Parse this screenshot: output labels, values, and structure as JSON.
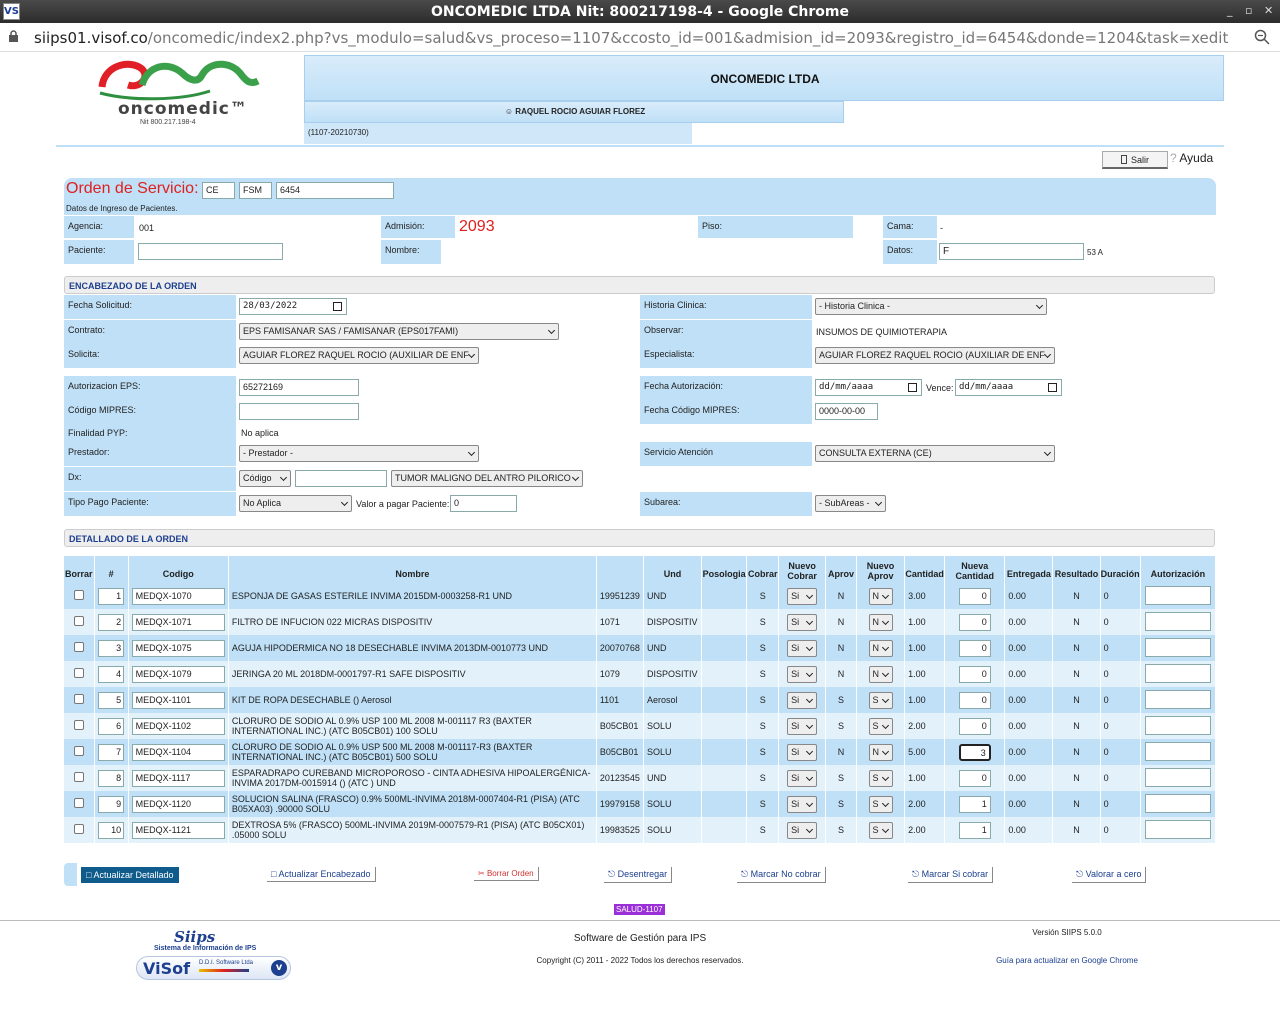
{
  "window": {
    "title": "ONCOMEDIC LTDA Nit: 800217198-4 - Google Chrome",
    "app_icon": "VS",
    "controls": [
      "_",
      "▫",
      "✕"
    ]
  },
  "browser": {
    "url_host": "siips01.visof.co",
    "url_path": "/oncomedic/index2.php?vs_modulo=salud&vs_proceso=1107&ccosto_id=001&admision_id=2093&registro_id=6454&donde=1204&task=xedit"
  },
  "logo": {
    "name": "oncomedic™",
    "nit": "Nit 800.217.198-4"
  },
  "header": {
    "company": "ONCOMEDIC LTDA",
    "user": "☺ RAQUEL ROCIO AGUIAR FLOREZ",
    "process": "(1107-20210730)",
    "logout": "Salir",
    "help": "Ayuda"
  },
  "order": {
    "title": "Orden de Servicio:",
    "prefix1": "CE",
    "prefix2": "FSM",
    "number": "6454",
    "subtitle": "Datos de Ingreso de Pacientes.",
    "agencia_label": "Agencia:",
    "agencia": "001",
    "admision_label": "Admisión:",
    "admision": "2093",
    "piso_label": "Piso:",
    "cama_label": "Cama:",
    "cama": "-",
    "paciente_label": "Paciente:",
    "paciente": "",
    "nombre_label": "Nombre:",
    "datos_label": "Datos:",
    "datos": "F",
    "edad": "53 A"
  },
  "encabezado": {
    "section": "ENCABEZADO DE LA ORDEN",
    "fecha_solicitud_label": "Fecha Solicitud:",
    "fecha_solicitud": "28/03/2022",
    "historia_label": "Historia Clinica:",
    "historia": "- Historia Clinica -",
    "contrato_label": "Contrato:",
    "contrato": "EPS FAMISANAR SAS / FAMISANAR (EPS017FAMI)",
    "observar_label": "Observar:",
    "observar": "INSUMOS DE QUIMIOTERAPIA",
    "solicita_label": "Solicita:",
    "solicita": "AGUIAR FLOREZ RAQUEL ROCIO (AUXILIAR DE ENF",
    "especialista_label": "Especialista:",
    "especialista": "AGUIAR FLOREZ RAQUEL ROCIO (AUXILIAR DE ENF",
    "autorizacion_label": "Autorizacion EPS:",
    "autorizacion": "65272169",
    "fecha_aut_label": "Fecha Autorización:",
    "fecha_aut": "dd/mm/aaaa",
    "vence_label": "Vence:",
    "vence": "dd/mm/aaaa",
    "mipres_label": "Código MIPRES:",
    "mipres": "",
    "fecha_mipres_label": "Fecha Código MIPRES:",
    "fecha_mipres": "0000-00-00",
    "finalidad_label": "Finalidad PYP:",
    "finalidad": "No aplica",
    "prestador_label": "Prestador:",
    "prestador": "- Prestador -",
    "servicio_label": "Servicio Atención",
    "servicio": "CONSULTA EXTERNA (CE)",
    "dx_label": "Dx:",
    "dx_code": "Código",
    "dx_text": "",
    "dx_desc": "TUMOR MALIGNO DEL ANTRO PILORICO",
    "tipo_pago_label": "Tipo Pago Paciente:",
    "tipo_pago": "No Aplica",
    "valor_label": "Valor a pagar Paciente:",
    "valor": "0",
    "subarea_label": "Subarea:",
    "subarea": "- SubAreas -"
  },
  "detalle": {
    "section": "DETALLADO DE LA ORDEN",
    "columns": [
      "Borrar",
      "#",
      "Codigo",
      "Nombre",
      "",
      "Und",
      "Posologia",
      "Cobrar",
      "Nuevo Cobrar",
      "Aprov",
      "Nuevo Aprov",
      "Cantidad",
      "Nueva Cantidad",
      "Entregada",
      "Resultado",
      "Duración",
      "Autorización"
    ],
    "rows": [
      {
        "n": "1",
        "code": "MEDQX-1070",
        "name": "ESPONJA DE GASAS ESTERILE INVIMA 2015DM-0003258-R1 UND",
        "ref": "19951239",
        "und": "UND",
        "pos": "",
        "cobrar": "S",
        "nc": "Si",
        "aprov": "N",
        "na": "N",
        "cant": "3.00",
        "ncant": "0",
        "ent": "0.00",
        "res": "N",
        "dur": "0"
      },
      {
        "n": "2",
        "code": "MEDQX-1071",
        "name": "FILTRO DE INFUCION 022 MICRAS DISPOSITIV",
        "ref": "1071",
        "und": "DISPOSITIV",
        "pos": "",
        "cobrar": "S",
        "nc": "Si",
        "aprov": "N",
        "na": "N",
        "cant": "1.00",
        "ncant": "0",
        "ent": "0.00",
        "res": "N",
        "dur": "0"
      },
      {
        "n": "3",
        "code": "MEDQX-1075",
        "name": "AGUJA HIPODERMICA NO 18 DESECHABLE INVIMA 2013DM-0010773 UND",
        "ref": "20070768",
        "und": "UND",
        "pos": "",
        "cobrar": "S",
        "nc": "Si",
        "aprov": "N",
        "na": "N",
        "cant": "1.00",
        "ncant": "0",
        "ent": "0.00",
        "res": "N",
        "dur": "0"
      },
      {
        "n": "4",
        "code": "MEDQX-1079",
        "name": "JERINGA 20 ML 2018DM-0001797-R1 SAFE DISPOSITIV",
        "ref": "1079",
        "und": "DISPOSITIV",
        "pos": "",
        "cobrar": "S",
        "nc": "Si",
        "aprov": "N",
        "na": "N",
        "cant": "1.00",
        "ncant": "0",
        "ent": "0.00",
        "res": "N",
        "dur": "0"
      },
      {
        "n": "5",
        "code": "MEDQX-1101",
        "name": "KIT DE ROPA DESECHABLE () Aerosol",
        "ref": "1101",
        "und": "Aerosol",
        "pos": "",
        "cobrar": "S",
        "nc": "Si",
        "aprov": "S",
        "na": "S",
        "cant": "1.00",
        "ncant": "0",
        "ent": "0.00",
        "res": "N",
        "dur": "0"
      },
      {
        "n": "6",
        "code": "MEDQX-1102",
        "name": "CLORURO DE SODIO AL 0.9% USP 100 ML 2008 M-001117 R3 (BAXTER INTERNATIONAL INC.) (ATC B05CB01) 100 SOLU",
        "ref": "B05CB01",
        "und": "SOLU",
        "pos": "",
        "cobrar": "S",
        "nc": "Si",
        "aprov": "S",
        "na": "S",
        "cant": "2.00",
        "ncant": "0",
        "ent": "0.00",
        "res": "N",
        "dur": "0"
      },
      {
        "n": "7",
        "code": "MEDQX-1104",
        "name": "CLORURO DE SODIO AL 0.9% USP 500 ML 2008 M-001117-R3 (BAXTER INTERNATIONAL INC.) (ATC B05CB01) 500 SOLU",
        "ref": "B05CB01",
        "und": "SOLU",
        "pos": "",
        "cobrar": "S",
        "nc": "Si",
        "aprov": "N",
        "na": "N",
        "cant": "5.00",
        "ncant": "3",
        "ent": "0.00",
        "res": "N",
        "dur": "0"
      },
      {
        "n": "8",
        "code": "MEDQX-1117",
        "name": "ESPARADRAPO CUREBAND MICROPOROSO - CINTA ADHESIVA HIPOALERGÉNICA- INVIMA 2017DM-0015914 () (ATC ) UND",
        "ref": "20123545",
        "und": "UND",
        "pos": "",
        "cobrar": "S",
        "nc": "Si",
        "aprov": "S",
        "na": "S",
        "cant": "1.00",
        "ncant": "0",
        "ent": "0.00",
        "res": "N",
        "dur": "0"
      },
      {
        "n": "9",
        "code": "MEDQX-1120",
        "name": "SOLUCION SALINA (FRASCO) 0.9% 500ML-INVIMA 2018M-0007404-R1 (PISA) (ATC B05XA03) .90000 SOLU",
        "ref": "19979158",
        "und": "SOLU",
        "pos": "",
        "cobrar": "S",
        "nc": "Si",
        "aprov": "S",
        "na": "S",
        "cant": "2.00",
        "ncant": "1",
        "ent": "0.00",
        "res": "N",
        "dur": "0"
      },
      {
        "n": "10",
        "code": "MEDQX-1121",
        "name": "DEXTROSA 5% (FRASCO) 500ML-INVIMA 2019M-0007579-R1 (PISA) (ATC B05CX01) .05000 SOLU",
        "ref": "19983525",
        "und": "SOLU",
        "pos": "",
        "cobrar": "S",
        "nc": "Si",
        "aprov": "S",
        "na": "S",
        "cant": "2.00",
        "ncant": "1",
        "ent": "0.00",
        "res": "N",
        "dur": "0"
      }
    ]
  },
  "actions": {
    "actualizar_detallado": "Actualizar Detallado",
    "actualizar_encabezado": "Actualizar Encabezado",
    "borrar_orden": "Borrar Orden",
    "desentregar": "Desentregar",
    "marcar_no_cobrar": "Marcar No cobrar",
    "marcar_si_cobrar": "Marcar Si cobrar",
    "valorar_cero": "Valorar a cero"
  },
  "footer": {
    "badge": "SALUD-1107",
    "siips_brand": "Siips",
    "siips_sub": "Sistema de Información de IPS",
    "visof_brand": "ViSof",
    "visof_sub": "D.D.I. Software Ltda",
    "software": "Software de Gestión para IPS",
    "copyright": "Copyright (C) 2011 - 2022 Todos los derechos reservados.",
    "version": "Versión SIIPS 5.0.0",
    "guide": "Guía para actualizar en Google Chrome"
  }
}
